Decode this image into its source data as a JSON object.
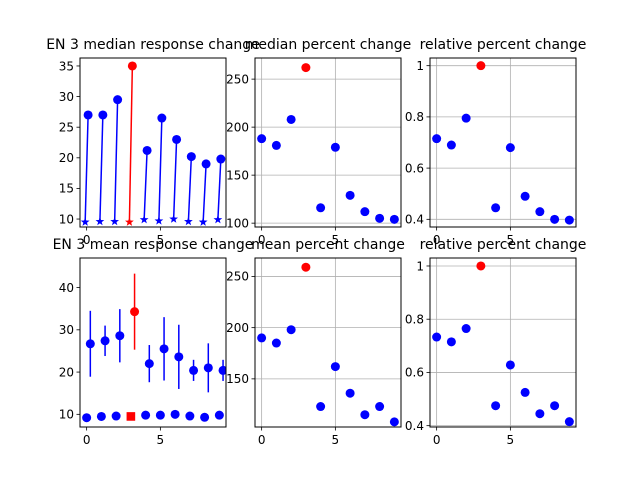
{
  "colors": {
    "base": "#0000ff",
    "highlight": "#ff0000"
  },
  "chart_data": [
    {
      "id": "median-response",
      "type": "line",
      "title": "EN 3 median response change",
      "xlabel": "",
      "ylabel": "",
      "grid": false,
      "xlim": [
        -0.45,
        9.45
      ],
      "ylim": [
        8.7,
        36.3
      ],
      "xticks": [
        0,
        5
      ],
      "yticks": [
        10,
        15,
        20,
        25,
        30,
        35
      ],
      "highlight_index": 3,
      "series": [
        {
          "x": [
            -0.1,
            0.9,
            1.9,
            2.9,
            3.9,
            4.9,
            5.9,
            6.9,
            7.9,
            8.9
          ],
          "values": [
            9.5,
            9.6,
            9.6,
            9.5,
            9.9,
            9.7,
            10.0,
            9.6,
            9.5,
            9.9
          ],
          "marker": "star"
        },
        {
          "x": [
            0.1,
            1.1,
            2.1,
            3.1,
            4.1,
            5.1,
            6.1,
            7.1,
            8.1,
            9.1
          ],
          "values": [
            27.0,
            27.0,
            29.5,
            35.0,
            21.2,
            26.5,
            23.0,
            20.2,
            19.0,
            19.8
          ],
          "marker": "circle"
        }
      ]
    },
    {
      "id": "median-percent",
      "type": "scatter",
      "title": "median percent change",
      "xlabel": "",
      "ylabel": "",
      "grid": true,
      "xlim": [
        -0.45,
        9.45
      ],
      "ylim": [
        96,
        272
      ],
      "xticks": [
        0,
        5
      ],
      "yticks": [
        100,
        150,
        200,
        250
      ],
      "highlight_index": 3,
      "series": [
        {
          "x": [
            0,
            1,
            2,
            3,
            4,
            5,
            6,
            7,
            8,
            9
          ],
          "values": [
            188,
            181,
            208,
            262,
            116,
            179,
            129,
            112,
            105,
            104
          ],
          "marker": "circle"
        }
      ]
    },
    {
      "id": "median-relative",
      "type": "scatter",
      "title": "relative percent change",
      "xlabel": "",
      "ylabel": "",
      "grid": true,
      "xlim": [
        -0.45,
        9.45
      ],
      "ylim": [
        0.37,
        1.03
      ],
      "xticks": [
        0,
        5
      ],
      "yticks": [
        0.4,
        0.6,
        0.8,
        1.0
      ],
      "highlight_index": 3,
      "series": [
        {
          "x": [
            0,
            1,
            2,
            3,
            4,
            5,
            6,
            7,
            8,
            9
          ],
          "values": [
            0.715,
            0.69,
            0.795,
            1.0,
            0.445,
            0.68,
            0.49,
            0.43,
            0.4,
            0.397
          ],
          "marker": "circle"
        }
      ]
    },
    {
      "id": "mean-response",
      "type": "scatter",
      "title": "EN 3 mean response change",
      "xlabel": "",
      "ylabel": "",
      "grid": false,
      "xlim": [
        -0.45,
        9.45
      ],
      "ylim": [
        7.0,
        47.0
      ],
      "xticks": [
        0,
        5
      ],
      "yticks": [
        10,
        20,
        30,
        40
      ],
      "highlight_index": 3,
      "series": [
        {
          "x": [
            0,
            1,
            2,
            3,
            4,
            5,
            6,
            7,
            8,
            9
          ],
          "values": [
            9.2,
            9.5,
            9.6,
            9.5,
            9.8,
            9.8,
            10.0,
            9.6,
            9.3,
            9.8
          ],
          "marker": "circle",
          "errors": null
        },
        {
          "x": [
            0.25,
            1.25,
            2.25,
            3.25,
            4.25,
            5.25,
            6.25,
            7.25,
            8.25,
            9.25
          ],
          "values": [
            26.7,
            27.4,
            28.6,
            34.3,
            22.0,
            25.5,
            23.6,
            20.4,
            21.0,
            20.4
          ],
          "marker": "circle",
          "errors": [
            7.8,
            3.6,
            6.3,
            9.0,
            4.4,
            7.5,
            7.6,
            2.5,
            5.8,
            2.5
          ]
        }
      ]
    },
    {
      "id": "mean-percent",
      "type": "scatter",
      "title": "mean percent change",
      "xlabel": "",
      "ylabel": "",
      "grid": true,
      "xlim": [
        -0.45,
        9.45
      ],
      "ylim": [
        103,
        268
      ],
      "xticks": [
        0,
        5
      ],
      "yticks": [
        150,
        200,
        250
      ],
      "highlight_index": 3,
      "series": [
        {
          "x": [
            0,
            1,
            2,
            3,
            4,
            5,
            6,
            7,
            8,
            9
          ],
          "values": [
            190,
            185,
            198,
            259,
            123,
            162,
            136,
            115,
            123,
            108
          ],
          "marker": "circle"
        }
      ]
    },
    {
      "id": "mean-relative",
      "type": "scatter",
      "title": "relative percent change",
      "xlabel": "",
      "ylabel": "",
      "grid": true,
      "xlim": [
        -0.45,
        9.45
      ],
      "ylim": [
        0.395,
        1.03
      ],
      "xticks": [
        0,
        5
      ],
      "yticks": [
        0.4,
        0.6,
        0.8,
        1.0
      ],
      "highlight_index": 3,
      "series": [
        {
          "x": [
            0,
            1,
            2,
            3,
            4,
            5,
            6,
            7,
            8,
            9
          ],
          "values": [
            0.733,
            0.715,
            0.765,
            1.0,
            0.475,
            0.628,
            0.525,
            0.445,
            0.475,
            0.415
          ],
          "marker": "circle"
        }
      ]
    }
  ]
}
